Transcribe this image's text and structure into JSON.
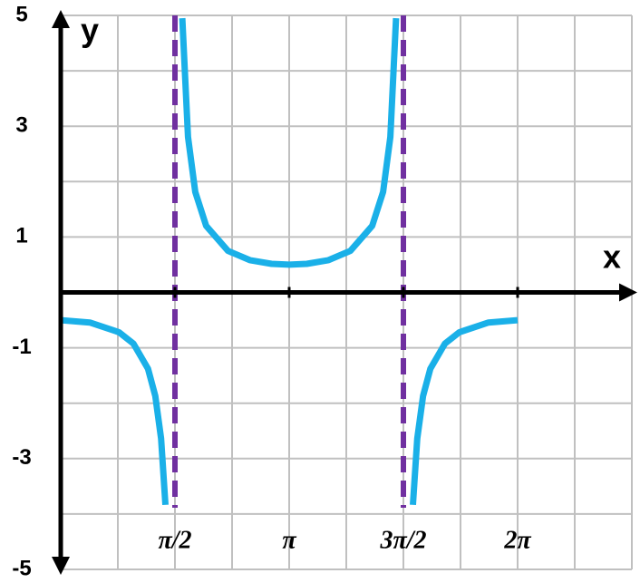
{
  "chart_data": {
    "type": "line",
    "x_label": "x",
    "y_label": "y",
    "x": [
      0,
      0.4,
      0.8,
      1.0,
      1.2,
      1.3,
      1.38,
      1.44,
      1.5708,
      1.672,
      1.75,
      1.85,
      2.0,
      2.3,
      2.6,
      2.9,
      3.1416,
      3.3832,
      3.6832,
      3.9832,
      4.2832,
      4.4332,
      4.5332,
      4.6112,
      4.7124,
      4.843,
      4.9032,
      4.9832,
      5.0832,
      5.2832,
      5.4832,
      5.8832,
      6.2832
    ],
    "series": [
      {
        "name": "y",
        "color": "#1ab0e8",
        "values": [
          -0.5,
          -0.543,
          -0.718,
          -0.925,
          -1.38,
          -1.869,
          -2.637,
          -3.834,
          null,
          4.95,
          2.806,
          1.814,
          1.202,
          0.75,
          0.583,
          0.515,
          0.5,
          0.515,
          0.583,
          0.75,
          1.202,
          1.814,
          2.806,
          4.95,
          null,
          -3.834,
          -2.637,
          -1.869,
          -1.38,
          -0.925,
          -0.718,
          -0.543,
          -0.5
        ]
      }
    ],
    "asymptotes": [
      1.5708,
      4.7124
    ],
    "asymptote_color": "#7030a0",
    "xlim": [
      0,
      7.854
    ],
    "ylim": [
      -5,
      5
    ],
    "xticks": [
      {
        "value": 1.5708,
        "label": "π/2"
      },
      {
        "value": 3.1416,
        "label": "π"
      },
      {
        "value": 4.7124,
        "label": "3π/2"
      },
      {
        "value": 6.2832,
        "label": "2π"
      }
    ],
    "yticks": [
      -5,
      -3,
      -1,
      1,
      3,
      5
    ],
    "x_minor_grid": [
      0.7854,
      1.5708,
      2.3562,
      3.1416,
      3.927,
      4.7124,
      5.4978,
      6.2832,
      7.0686,
      7.854
    ],
    "y_minor_grid": [
      -4,
      -2,
      0,
      2,
      4
    ],
    "grid": true
  }
}
